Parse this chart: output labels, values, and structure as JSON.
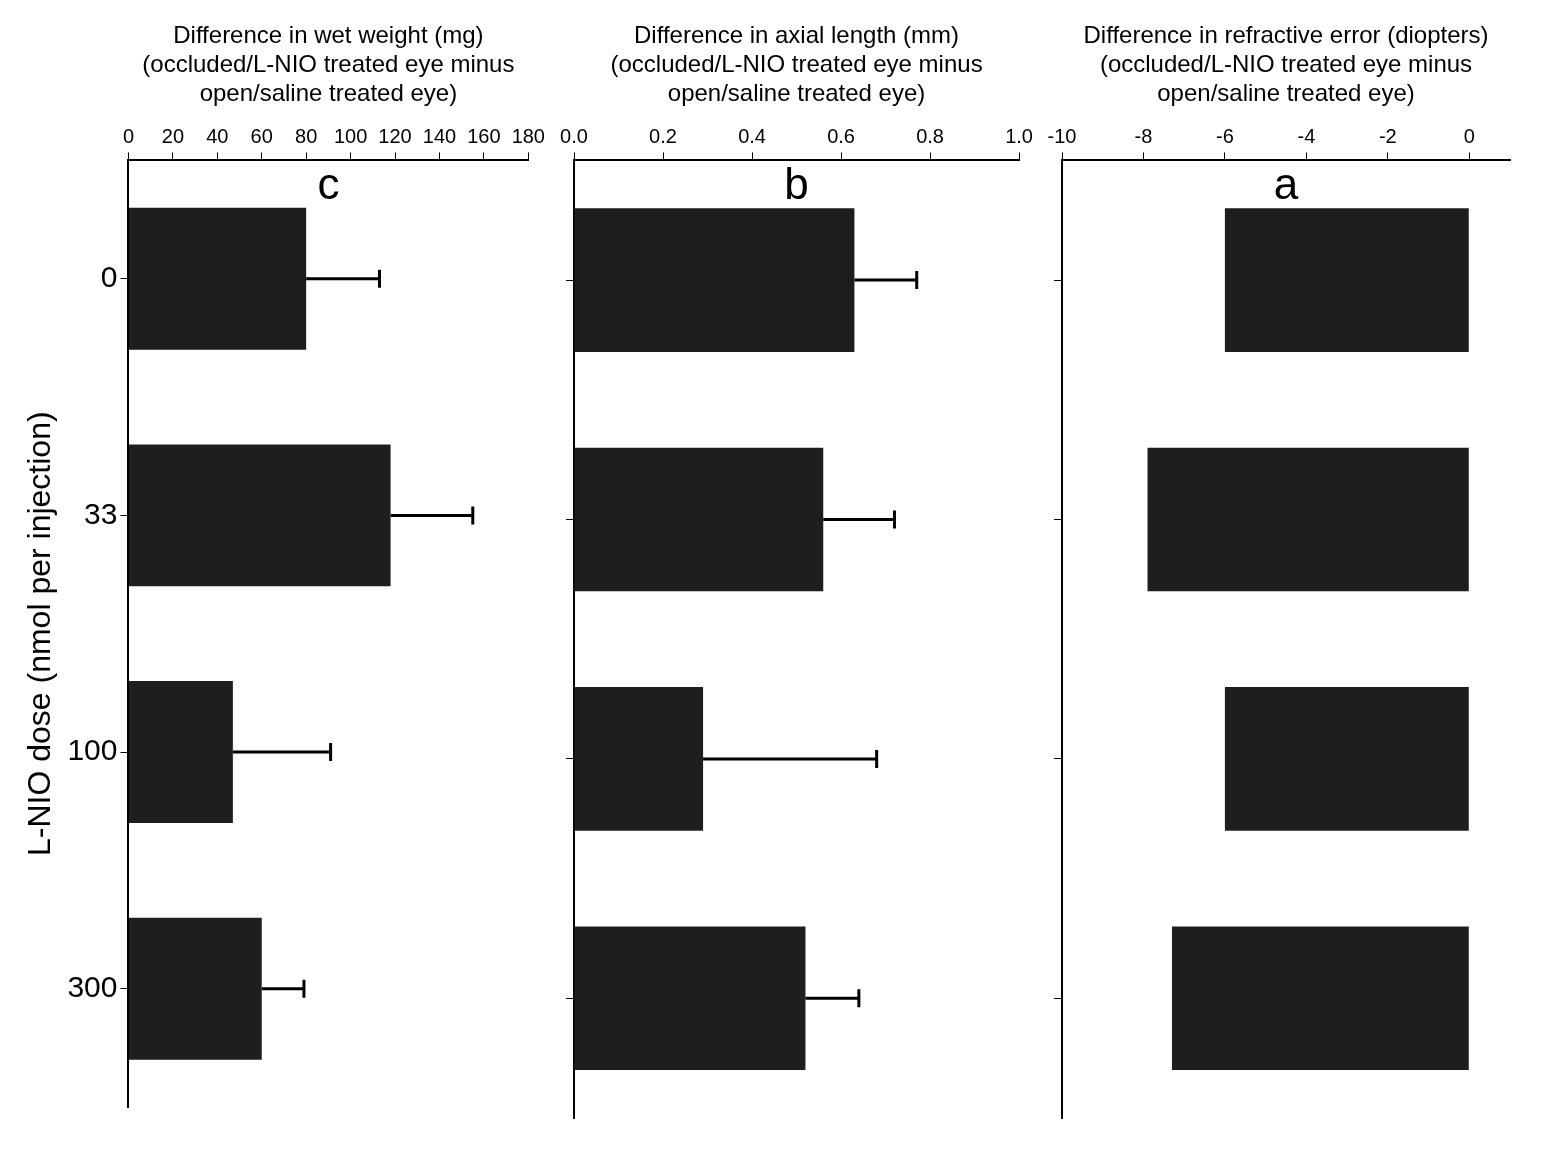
{
  "chart_data": [
    {
      "type": "bar",
      "orientation": "horizontal",
      "xlabel": "Difference in wet weight (mg)\n(occluded/L-NIO treated eye minus\nopen/saline treated eye)",
      "ylabel": "L-NIO dose (nmol per injection)",
      "annotations": [
        "c"
      ],
      "categories": [
        "0",
        "33",
        "100",
        "300"
      ],
      "values": [
        80,
        118,
        47,
        60
      ],
      "errors": [
        [
          80,
          113
        ],
        [
          118,
          155
        ],
        [
          47,
          91
        ],
        [
          60,
          79
        ]
      ],
      "color": "#1e1e1e",
      "xlim": [
        0,
        180
      ],
      "xticks": [
        0,
        20,
        40,
        60,
        80,
        100,
        120,
        140,
        160,
        180
      ],
      "grid": false,
      "legend": false
    },
    {
      "type": "bar",
      "orientation": "horizontal",
      "xlabel": "Difference in axial length (mm)\n(occluded/L-NIO treated eye minus\nopen/saline treated eye)",
      "annotations": [
        "b"
      ],
      "categories": [
        "0",
        "33",
        "100",
        "300"
      ],
      "values": [
        0.63,
        0.56,
        0.29,
        0.52
      ],
      "errors": [
        [
          0.63,
          0.77
        ],
        [
          0.56,
          0.72
        ],
        [
          0.29,
          0.68
        ],
        [
          0.52,
          0.64
        ]
      ],
      "color": "#1e1e1e",
      "xlim": [
        0,
        1
      ],
      "xticks": [
        {
          "value": 0,
          "label": "0.0"
        },
        {
          "value": 0.2,
          "label": "0.2"
        },
        {
          "value": 0.4,
          "label": "0.4"
        },
        {
          "value": 0.6,
          "label": "0.6"
        },
        {
          "value": 0.8,
          "label": "0.8"
        },
        {
          "value": 1,
          "label": "1.0"
        }
      ],
      "tick_labels": "x",
      "grid": false,
      "legend": false
    },
    {
      "type": "bar",
      "orientation": "horizontal",
      "xlabel": "Difference in refractive error (diopters)\n(occluded/L-NIO treated eye minus\nopen/saline treated eye)",
      "annotations": [
        "a"
      ],
      "categories": [
        "0",
        "33",
        "100",
        "300"
      ],
      "values": [
        -6.0,
        -7.9,
        -6.0,
        -7.3
      ],
      "color": "#1e1e1e",
      "xlim": [
        -10,
        1
      ],
      "xticks": [
        -10,
        -8,
        -6,
        -4,
        -2,
        0
      ],
      "tick_labels": "x",
      "grid": false,
      "legend": false
    }
  ]
}
